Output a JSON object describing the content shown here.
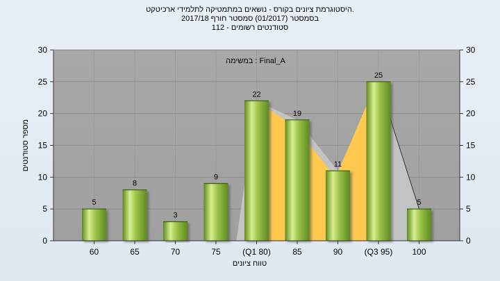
{
  "chart_data": {
    "type": "bar",
    "title_lines": [
      "היסטוגרמת ציונים בקורס - נושאים במתמטיקה לתלמידי ארכיטקט.",
      "בסמסטר  (01/2017)  סמסטר חורף 2017/18",
      "סטודנטים רשומים - 112"
    ],
    "annotation": "במשימה : Final_A",
    "categories": [
      "60",
      "65",
      "70",
      "75",
      "(Q1 80)",
      "85",
      "90",
      "(Q3 95)",
      "100"
    ],
    "values": [
      5,
      8,
      3,
      9,
      22,
      19,
      11,
      25,
      5
    ],
    "xlabel": "טווח ציונים",
    "ylabel": "מספר סטודנטים",
    "ylim": [
      0,
      30
    ],
    "yticks": [
      0,
      5,
      10,
      15,
      20,
      25,
      30
    ],
    "grid": true,
    "colors": {
      "bar_light": "#d7ee8e",
      "bar_mid": "#9cc44a",
      "bar_dark": "#5f8a1e",
      "iqr_fill": "#ffc84e",
      "range_fill": "#c3c3c3",
      "plot_bg": "#a3a3a3"
    }
  }
}
